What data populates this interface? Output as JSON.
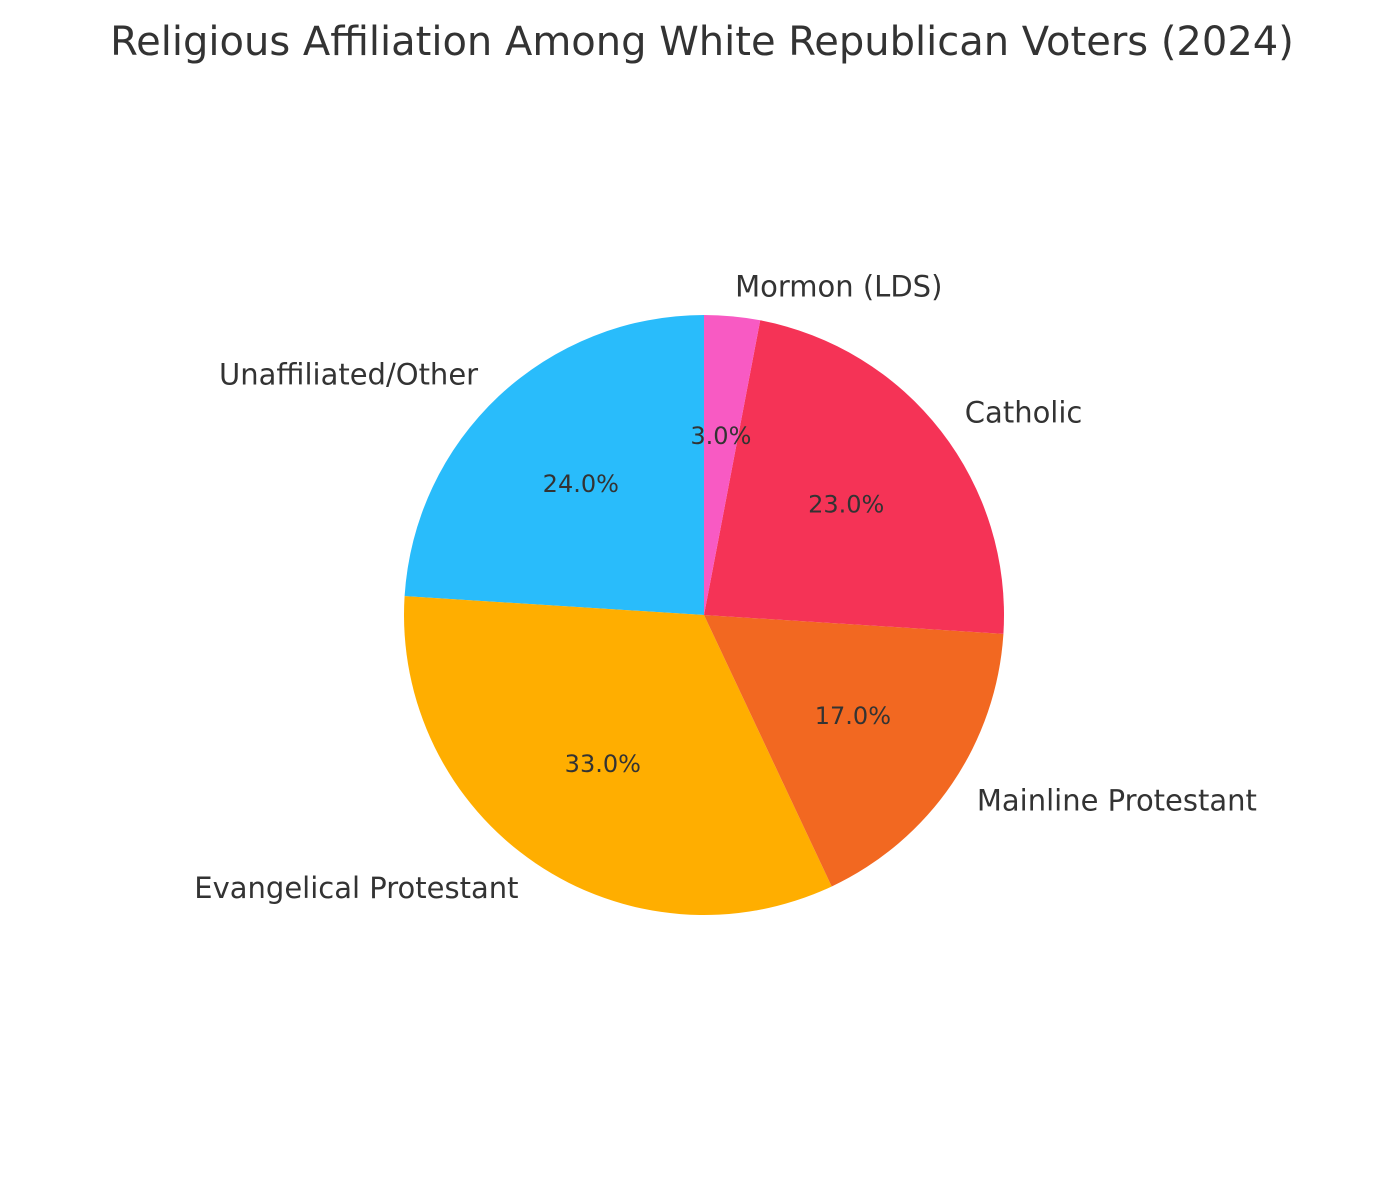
{
  "chart_data": {
    "type": "pie",
    "title": "Religious Affiliation Among White Republican Voters (2024)",
    "start_angle_deg": 90,
    "direction": "counterclockwise",
    "slices": [
      {
        "label": "Unaffiliated/Other",
        "value": 24.0,
        "pct_label": "24.0%",
        "color": "#29BCFB"
      },
      {
        "label": "Evangelical Protestant",
        "value": 33.0,
        "pct_label": "33.0%",
        "color": "#FFAE00"
      },
      {
        "label": "Mainline Protestant",
        "value": 17.0,
        "pct_label": "17.0%",
        "color": "#F26821"
      },
      {
        "label": "Catholic",
        "value": 23.0,
        "pct_label": "23.0%",
        "color": "#F53356"
      },
      {
        "label": "Mormon (LDS)",
        "value": 3.0,
        "pct_label": "3.0%",
        "color": "#F85AC3"
      }
    ]
  }
}
